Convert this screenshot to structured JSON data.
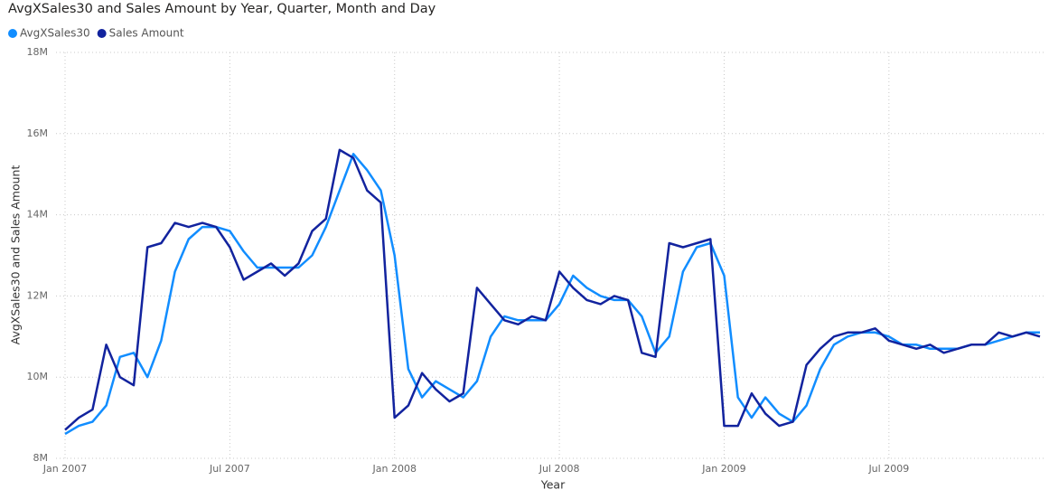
{
  "chart_data": {
    "type": "line",
    "title": "AvgXSales30 and Sales Amount by Year, Quarter, Month and Day",
    "x_label": "Year",
    "y_label": "AvgXSales30 and Sales Amount",
    "categories": [
      "Jan 2007",
      null,
      null,
      null,
      null,
      null,
      null,
      null,
      null,
      null,
      null,
      null,
      "Jul 2007",
      null,
      null,
      null,
      null,
      null,
      null,
      null,
      null,
      null,
      null,
      null,
      "Jan 2008",
      null,
      null,
      null,
      null,
      null,
      null,
      null,
      null,
      null,
      null,
      null,
      "Jul 2008",
      null,
      null,
      null,
      null,
      null,
      null,
      null,
      null,
      null,
      null,
      null,
      "Jan 2009",
      null,
      null,
      null,
      null,
      null,
      null,
      null,
      null,
      null,
      null,
      null,
      "Jul 2009",
      null,
      null,
      null,
      null,
      null,
      null,
      null,
      null,
      null,
      null,
      null
    ],
    "series": [
      {
        "name": "AvgXSales30",
        "color": "#118dff",
        "values": [
          8600000,
          8800000,
          8900000,
          9300000,
          10500000,
          10600000,
          10000000,
          10900000,
          12600000,
          13400000,
          13700000,
          13700000,
          13600000,
          13100000,
          12700000,
          12700000,
          12700000,
          12700000,
          13000000,
          13700000,
          14600000,
          15500000,
          15100000,
          14600000,
          13000000,
          10200000,
          9500000,
          9900000,
          9700000,
          9500000,
          9900000,
          11000000,
          11500000,
          11400000,
          11400000,
          11400000,
          11800000,
          12500000,
          12200000,
          12000000,
          11900000,
          11900000,
          11500000,
          10600000,
          11000000,
          12600000,
          13200000,
          13300000,
          12500000,
          9500000,
          9000000,
          9500000,
          9100000,
          8900000,
          9300000,
          10200000,
          10800000,
          11000000,
          11100000,
          11100000,
          11000000,
          10800000,
          10800000,
          10700000,
          10700000,
          10700000,
          10800000,
          10800000,
          10900000,
          11000000,
          11100000,
          11100000
        ]
      },
      {
        "name": "Sales Amount",
        "color": "#12239e",
        "values": [
          8700000,
          9000000,
          9200000,
          10800000,
          10000000,
          9800000,
          13200000,
          13300000,
          13800000,
          13700000,
          13800000,
          13700000,
          13200000,
          12400000,
          12600000,
          12800000,
          12500000,
          12800000,
          13600000,
          13900000,
          15600000,
          15400000,
          14600000,
          14300000,
          9000000,
          9300000,
          10100000,
          9700000,
          9400000,
          9600000,
          12200000,
          11800000,
          11400000,
          11300000,
          11500000,
          11400000,
          12600000,
          12200000,
          11900000,
          11800000,
          12000000,
          11900000,
          10600000,
          10500000,
          13300000,
          13200000,
          13300000,
          13400000,
          8800000,
          8800000,
          9600000,
          9100000,
          8800000,
          8900000,
          10300000,
          10700000,
          11000000,
          11100000,
          11100000,
          11200000,
          10900000,
          10800000,
          10700000,
          10800000,
          10600000,
          10700000,
          10800000,
          10800000,
          11100000,
          11000000,
          11100000,
          11000000
        ]
      }
    ],
    "ylim": [
      8000000,
      18000000
    ],
    "yticks": [
      {
        "value": 8000000,
        "label": "8M"
      },
      {
        "value": 10000000,
        "label": "10M"
      },
      {
        "value": 12000000,
        "label": "12M"
      },
      {
        "value": 14000000,
        "label": "14M"
      },
      {
        "value": 16000000,
        "label": "16M"
      },
      {
        "value": 18000000,
        "label": "18M"
      }
    ],
    "grid": true
  }
}
